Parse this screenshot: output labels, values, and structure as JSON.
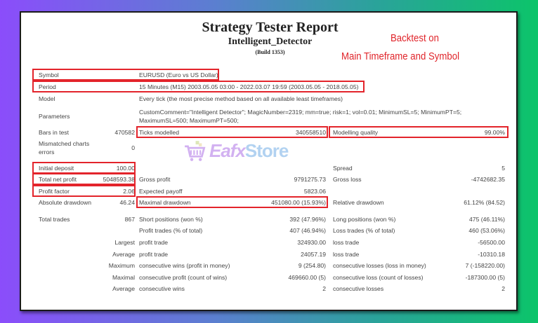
{
  "header": {
    "title": "Strategy Tester Report",
    "expert": "Intelligent_Detector",
    "build": "(Build 1353)"
  },
  "annotation": {
    "line1": "Backtest on",
    "line2": "Main Timeframe and Symbol",
    "color": "#e0242a"
  },
  "watermark": {
    "brand_a": "Eafx",
    "brand_b": "Store",
    "icon": "shopping-cart-icon"
  },
  "settings": {
    "symbol": {
      "label": "Symbol",
      "value": "EURUSD (Euro vs US Dollar)"
    },
    "period": {
      "label": "Period",
      "value": "15 Minutes (M15) 2003.05.05 03:00 - 2022.03.07 19:59 (2003.05.05 - 2018.05.05)"
    },
    "model": {
      "label": "Model",
      "value": "Every tick (the most precise method based on all available least timeframes)"
    },
    "parameters": {
      "label": "Parameters",
      "line1": "CustomComment=\"Intelligent Detector\"; MagicNumber=2319; mm=true; risk=1; vol=0.01; MinimumSL=5; MinimumPT=5;",
      "line2": "MaximumSL=500; MaximumPT=500;"
    },
    "bars": {
      "label": "Bars in test",
      "value": "470582"
    },
    "ticks": {
      "label": "Ticks modelled",
      "value": "340558510"
    },
    "quality": {
      "label": "Modelling quality",
      "value": "99.00%"
    },
    "mismatched": {
      "label1": "Mismatched charts",
      "label2": "errors",
      "value": "0"
    }
  },
  "results": {
    "initial_deposit": {
      "label": "Initial deposit",
      "value": "100.00"
    },
    "spread": {
      "label": "Spread",
      "value": "5"
    },
    "total_net_profit": {
      "label": "Total net profit",
      "value": "5048593.38"
    },
    "gross_profit": {
      "label": "Gross profit",
      "value": "9791275.73"
    },
    "gross_loss": {
      "label": "Gross loss",
      "value": "-4742682.35"
    },
    "profit_factor": {
      "label": "Profit factor",
      "value": "2.06"
    },
    "expected_payoff": {
      "label": "Expected payoff",
      "value": "5823.06"
    },
    "absolute_drawdown": {
      "label": "Absolute drawdown",
      "value": "46.24"
    },
    "maximal_drawdown": {
      "label": "Maximal drawdown",
      "value": "451080.00 (15.93%)"
    },
    "relative_drawdown": {
      "label": "Relative drawdown",
      "value": "61.12% (84.52)"
    }
  },
  "trades": {
    "total": {
      "label": "Total trades",
      "value": "867"
    },
    "short": {
      "label": "Short positions (won %)",
      "value": "392 (47.96%)"
    },
    "long": {
      "label": "Long positions (won %)",
      "value": "475 (46.11%)"
    },
    "profit_trades": {
      "label": "Profit trades (% of total)",
      "value": "407 (46.94%)"
    },
    "loss_trades": {
      "label": "Loss trades (% of total)",
      "value": "460 (53.06%)"
    },
    "largest": {
      "prefix": "Largest",
      "l2": "profit trade",
      "v2": "324930.00",
      "l3": "loss trade",
      "v3": "-56500.00"
    },
    "average": {
      "prefix": "Average",
      "l2": "profit trade",
      "v2": "24057.19",
      "l3": "loss trade",
      "v3": "-10310.18"
    },
    "maximum": {
      "prefix": "Maximum",
      "l2": "consecutive wins (profit in money)",
      "v2": "9 (254.80)",
      "l3": "consecutive losses (loss in money)",
      "v3": "7 (-158220.00)"
    },
    "maximal": {
      "prefix": "Maximal",
      "l2": "consecutive profit (count of wins)",
      "v2": "469660.00 (5)",
      "l3": "consecutive loss (count of losses)",
      "v3": "-187300.00 (5)"
    },
    "avg_consec": {
      "prefix": "Average",
      "l2": "consecutive wins",
      "v2": "2",
      "l3": "consecutive losses",
      "v3": "2"
    }
  }
}
